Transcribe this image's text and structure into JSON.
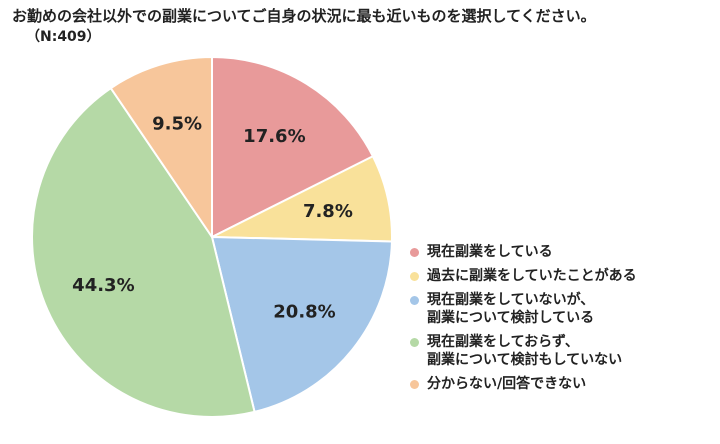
{
  "title": "お勤めの会社以外での副業についてご自身の状況に最も近いものを選択してください。",
  "subtitle": "（N:409）",
  "chart_data": {
    "type": "pie",
    "title": "お勤めの会社以外での副業についてご自身の状況に最も近いものを選択してください。",
    "subtitle": "（N:409）",
    "legend_position": "right",
    "start": "12 o'clock, clockwise",
    "slices": [
      {
        "name": "現在副業をしている",
        "value": 17.6,
        "label": "17.6%",
        "color": "#E89A9A"
      },
      {
        "name": "過去に副業をしていたことがある",
        "value": 7.8,
        "label": "7.8%",
        "color": "#F9E19A"
      },
      {
        "name": "現在副業をしていないが、\n副業について検討している",
        "value": 20.8,
        "label": "20.8%",
        "color": "#A4C6E8"
      },
      {
        "name": "現在副業をしておらず、\n副業について検討もしていない",
        "value": 44.3,
        "label": "44.3%",
        "color": "#B5D9A6"
      },
      {
        "name": "分からない/回答できない",
        "value": 9.5,
        "label": "9.5%",
        "color": "#F7C69B"
      }
    ]
  }
}
